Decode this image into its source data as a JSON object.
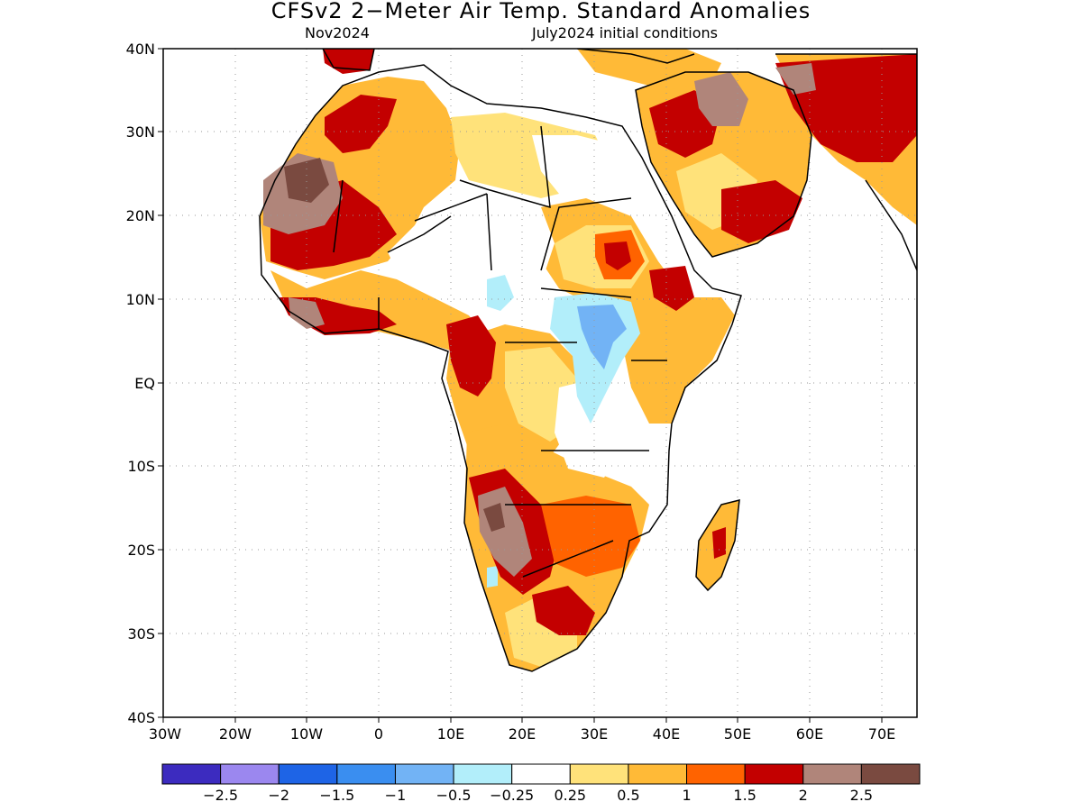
{
  "title": "CFSv2 2−Meter Air Temp. Standard Anomalies",
  "subtitle_left": "Nov2024",
  "subtitle_right": "July2024 initial conditions",
  "axes": {
    "x_ticks": [
      "30W",
      "20W",
      "10W",
      "0",
      "10E",
      "20E",
      "30E",
      "40E",
      "50E",
      "60E",
      "70E"
    ],
    "y_ticks": [
      "40N",
      "30N",
      "20N",
      "10N",
      "EQ",
      "10S",
      "20S",
      "30S",
      "40S"
    ]
  },
  "colorbar": {
    "colors": [
      "#3c2bbf",
      "#9b87ef",
      "#1e64e6",
      "#3a8ef0",
      "#72b3f5",
      "#b2eefa",
      "#ffffff",
      "#ffe27a",
      "#ffba37",
      "#ff6300",
      "#c30000",
      "#b0857a",
      "#7a4a40"
    ],
    "labels": [
      "−2.5",
      "−2",
      "−1.5",
      "−1",
      "−0.5",
      "−0.25",
      "0.25",
      "0.5",
      "1",
      "1.5",
      "2",
      "2.5"
    ]
  },
  "colors": {
    "cold_strong": "#3a8ef0",
    "cold_weak": "#b2eefa",
    "warm_weak": "#ffe27a",
    "warm": "#ffba37",
    "warm_mid": "#ff6300",
    "hot": "#c30000",
    "very_hot": "#b0857a",
    "extreme": "#7a4a40"
  }
}
